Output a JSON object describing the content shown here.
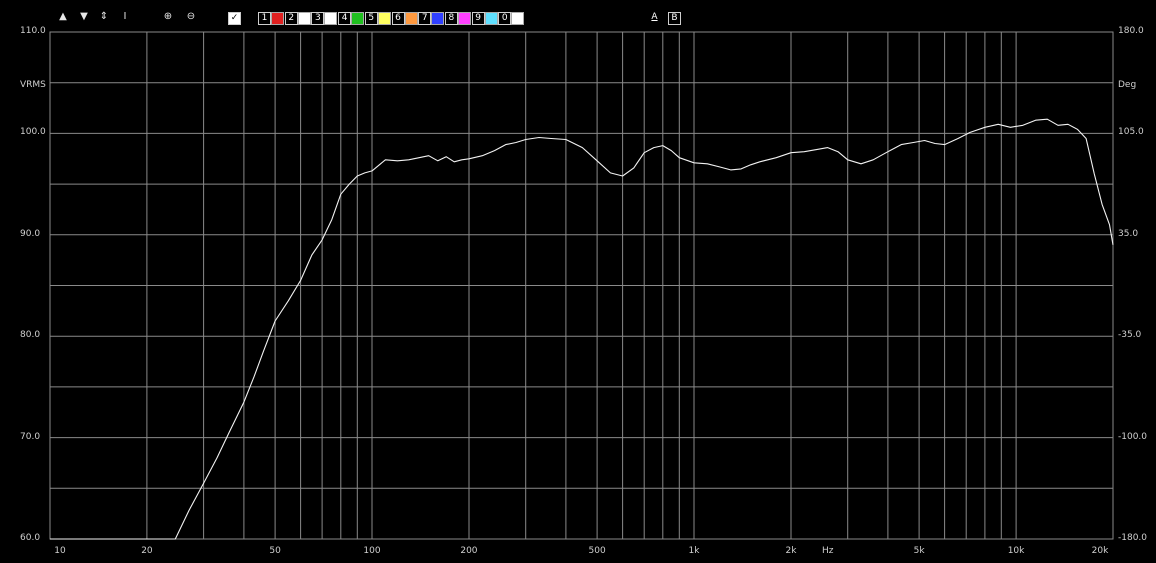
{
  "toolbar": {
    "icons": [
      "up-arrow-icon",
      "down-arrow-icon",
      "expand-vertical-icon",
      "fit-vertical-icon",
      "zoom-in-icon",
      "zoom-out-icon"
    ],
    "checkbox_checked": true,
    "traces": [
      {
        "num": "1",
        "color": "#e02020"
      },
      {
        "num": "2",
        "color": "#ffffff"
      },
      {
        "num": "3",
        "color": "#ffffff"
      },
      {
        "num": "4",
        "color": "#20c020"
      },
      {
        "num": "5",
        "color": "#ffff60"
      },
      {
        "num": "6",
        "color": "#ff9a40"
      },
      {
        "num": "7",
        "color": "#3040ff"
      },
      {
        "num": "8",
        "color": "#ff40ff"
      },
      {
        "num": "9",
        "color": "#60e0ff"
      },
      {
        "num": "0",
        "color": "#ffffff"
      }
    ],
    "a_label": "A",
    "b_label": "B"
  },
  "chart_data": {
    "type": "line",
    "title": "",
    "xlabel": "Hz",
    "ylabel": "VRMS",
    "y2label": "Deg",
    "xscale": "log",
    "xlim": [
      10,
      20000
    ],
    "ylim": [
      60,
      110
    ],
    "y2lim": [
      -180,
      180
    ],
    "grid": true,
    "y_tick_labels": [
      "110.0",
      "100.0",
      "90.0",
      "80.0",
      "70.0",
      "60.0"
    ],
    "y2_tick_labels": [
      "180.0",
      "105.0",
      "35.0",
      "-35.0",
      "-100.0",
      "-180.0"
    ],
    "x_tick_labels": [
      {
        "x": 10,
        "label": "10"
      },
      {
        "x": 20,
        "label": "20"
      },
      {
        "x": 50,
        "label": "50"
      },
      {
        "x": 100,
        "label": "100"
      },
      {
        "x": 200,
        "label": "200"
      },
      {
        "x": 500,
        "label": "500"
      },
      {
        "x": 1000,
        "label": "1k"
      },
      {
        "x": 2000,
        "label": "2k"
      },
      {
        "x": 5000,
        "label": "5k"
      },
      {
        "x": 10000,
        "label": "10k"
      },
      {
        "x": 20000,
        "label": "20k"
      }
    ],
    "colors": {
      "background": "#000000",
      "grid": "#8a8a8a",
      "trace": "#f2f2f2"
    },
    "series": [
      {
        "x": [
          10,
          24.5,
          27,
          30,
          33,
          36,
          40,
          43,
          46,
          50,
          55,
          60,
          65,
          70,
          75,
          80,
          85,
          90,
          95,
          100,
          110,
          120,
          130,
          140,
          150,
          160,
          170,
          180,
          190,
          200,
          220,
          240,
          260,
          280,
          300,
          330,
          360,
          400,
          450,
          500,
          550,
          600,
          650,
          700,
          750,
          800,
          850,
          900,
          1000,
          1100,
          1200,
          1300,
          1400,
          1500,
          1600,
          1800,
          2000,
          2200,
          2400,
          2600,
          2800,
          3000,
          3300,
          3600,
          4000,
          4400,
          4800,
          5200,
          5600,
          6000,
          6600,
          7200,
          8000,
          8800,
          9600,
          10500,
          11500,
          12500,
          13500,
          14500,
          15500,
          16500,
          17500,
          18500,
          19500,
          20000
        ],
        "values": [
          60,
          60,
          62.8,
          65.5,
          68,
          70.5,
          73.5,
          76,
          78.5,
          81.5,
          83.5,
          85.5,
          88,
          89.5,
          91.5,
          94,
          95,
          95.8,
          96.1,
          96.3,
          97.4,
          97.3,
          97.4,
          97.6,
          97.8,
          97.3,
          97.7,
          97.2,
          97.4,
          97.5,
          97.8,
          98.3,
          98.9,
          99.1,
          99.4,
          99.6,
          99.5,
          99.4,
          98.6,
          97.3,
          96.1,
          95.8,
          96.6,
          98.1,
          98.6,
          98.8,
          98.3,
          97.6,
          97.1,
          97.0,
          96.7,
          96.4,
          96.5,
          96.9,
          97.2,
          97.6,
          98.1,
          98.2,
          98.4,
          98.6,
          98.2,
          97.4,
          97.0,
          97.4,
          98.2,
          98.9,
          99.1,
          99.3,
          99.0,
          98.9,
          99.5,
          100.1,
          100.6,
          100.9,
          100.6,
          100.8,
          101.3,
          101.4,
          100.8,
          100.9,
          100.4,
          99.5,
          96.0,
          93.0,
          91.0,
          89.0
        ]
      }
    ]
  },
  "axis_unit_left": "VRMS",
  "axis_unit_right": "Deg",
  "axis_unit_x": "Hz"
}
